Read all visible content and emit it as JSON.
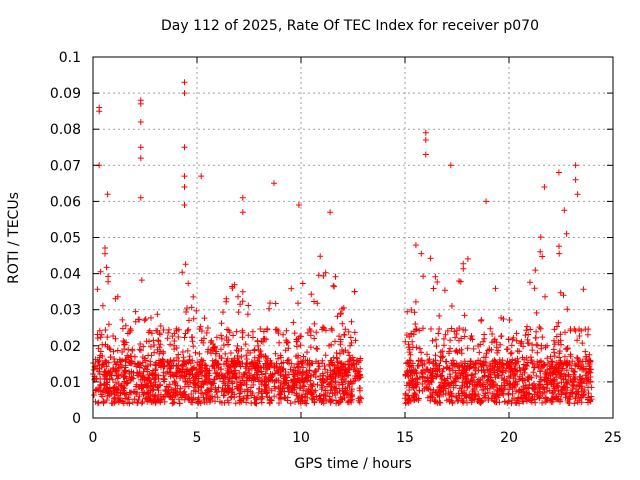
{
  "chart_data": {
    "type": "scatter",
    "title": "Day 112 of 2025, Rate Of TEC Index for receiver p070",
    "xlabel": "GPS time / hours",
    "ylabel": "ROTI / TECUs",
    "xlim": [
      0,
      25
    ],
    "ylim": [
      0,
      0.1
    ],
    "xticks": [
      "0",
      "5",
      "10",
      "15",
      "20",
      "25"
    ],
    "yticks": [
      "0",
      "0.01",
      "0.02",
      "0.03",
      "0.04",
      "0.05",
      "0.06",
      "0.07",
      "0.08",
      "0.09",
      "0.1"
    ],
    "grid": true,
    "marker": "+",
    "series": [
      {
        "color": "#ff0000",
        "segments": [
          {
            "x_start": 0.0,
            "x_end": 12.9
          },
          {
            "x_start": 15.0,
            "x_end": 24.0
          }
        ],
        "notable_points": [
          {
            "x": 0.3,
            "y": 0.086
          },
          {
            "x": 0.3,
            "y": 0.085
          },
          {
            "x": 0.3,
            "y": 0.07
          },
          {
            "x": 0.7,
            "y": 0.062
          },
          {
            "x": 2.3,
            "y": 0.088
          },
          {
            "x": 2.3,
            "y": 0.087
          },
          {
            "x": 2.3,
            "y": 0.082
          },
          {
            "x": 2.3,
            "y": 0.075
          },
          {
            "x": 2.3,
            "y": 0.072
          },
          {
            "x": 2.3,
            "y": 0.061
          },
          {
            "x": 4.4,
            "y": 0.093
          },
          {
            "x": 4.4,
            "y": 0.09
          },
          {
            "x": 4.4,
            "y": 0.075
          },
          {
            "x": 4.4,
            "y": 0.067
          },
          {
            "x": 4.4,
            "y": 0.064
          },
          {
            "x": 4.4,
            "y": 0.059
          },
          {
            "x": 5.2,
            "y": 0.067
          },
          {
            "x": 7.2,
            "y": 0.061
          },
          {
            "x": 7.2,
            "y": 0.057
          },
          {
            "x": 8.7,
            "y": 0.065
          },
          {
            "x": 9.9,
            "y": 0.059
          },
          {
            "x": 11.4,
            "y": 0.057
          },
          {
            "x": 16.0,
            "y": 0.079
          },
          {
            "x": 16.0,
            "y": 0.077
          },
          {
            "x": 16.0,
            "y": 0.073
          },
          {
            "x": 17.2,
            "y": 0.07
          },
          {
            "x": 18.9,
            "y": 0.06
          },
          {
            "x": 21.7,
            "y": 0.064
          },
          {
            "x": 22.4,
            "y": 0.068
          },
          {
            "x": 23.2,
            "y": 0.07
          },
          {
            "x": 23.2,
            "y": 0.066
          },
          {
            "x": 23.3,
            "y": 0.062
          }
        ],
        "envelope": [
          {
            "x": 0.0,
            "y": 0.04
          },
          {
            "x": 0.5,
            "y": 0.05
          },
          {
            "x": 1.0,
            "y": 0.037
          },
          {
            "x": 1.5,
            "y": 0.03
          },
          {
            "x": 2.0,
            "y": 0.032
          },
          {
            "x": 2.5,
            "y": 0.045
          },
          {
            "x": 3.0,
            "y": 0.03
          },
          {
            "x": 3.5,
            "y": 0.033
          },
          {
            "x": 4.0,
            "y": 0.04
          },
          {
            "x": 4.5,
            "y": 0.045
          },
          {
            "x": 5.0,
            "y": 0.035
          },
          {
            "x": 5.5,
            "y": 0.03
          },
          {
            "x": 6.0,
            "y": 0.028
          },
          {
            "x": 6.5,
            "y": 0.035
          },
          {
            "x": 7.0,
            "y": 0.045
          },
          {
            "x": 7.5,
            "y": 0.035
          },
          {
            "x": 8.0,
            "y": 0.03
          },
          {
            "x": 8.5,
            "y": 0.042
          },
          {
            "x": 9.0,
            "y": 0.03
          },
          {
            "x": 9.5,
            "y": 0.038
          },
          {
            "x": 10.0,
            "y": 0.045
          },
          {
            "x": 10.5,
            "y": 0.04
          },
          {
            "x": 11.0,
            "y": 0.052
          },
          {
            "x": 11.5,
            "y": 0.05
          },
          {
            "x": 12.0,
            "y": 0.045
          },
          {
            "x": 12.5,
            "y": 0.04
          },
          {
            "x": 12.9,
            "y": 0.025
          },
          {
            "x": 15.0,
            "y": 0.035
          },
          {
            "x": 15.5,
            "y": 0.05
          },
          {
            "x": 16.0,
            "y": 0.05
          },
          {
            "x": 16.5,
            "y": 0.045
          },
          {
            "x": 17.0,
            "y": 0.035
          },
          {
            "x": 17.5,
            "y": 0.04
          },
          {
            "x": 18.0,
            "y": 0.045
          },
          {
            "x": 18.5,
            "y": 0.04
          },
          {
            "x": 19.0,
            "y": 0.05
          },
          {
            "x": 19.5,
            "y": 0.035
          },
          {
            "x": 20.0,
            "y": 0.04
          },
          {
            "x": 20.5,
            "y": 0.048
          },
          {
            "x": 21.0,
            "y": 0.045
          },
          {
            "x": 21.5,
            "y": 0.055
          },
          {
            "x": 22.0,
            "y": 0.05
          },
          {
            "x": 22.5,
            "y": 0.06
          },
          {
            "x": 23.0,
            "y": 0.055
          },
          {
            "x": 23.5,
            "y": 0.045
          },
          {
            "x": 24.0,
            "y": 0.04
          }
        ],
        "baseline_y": 0.01
      }
    ]
  }
}
